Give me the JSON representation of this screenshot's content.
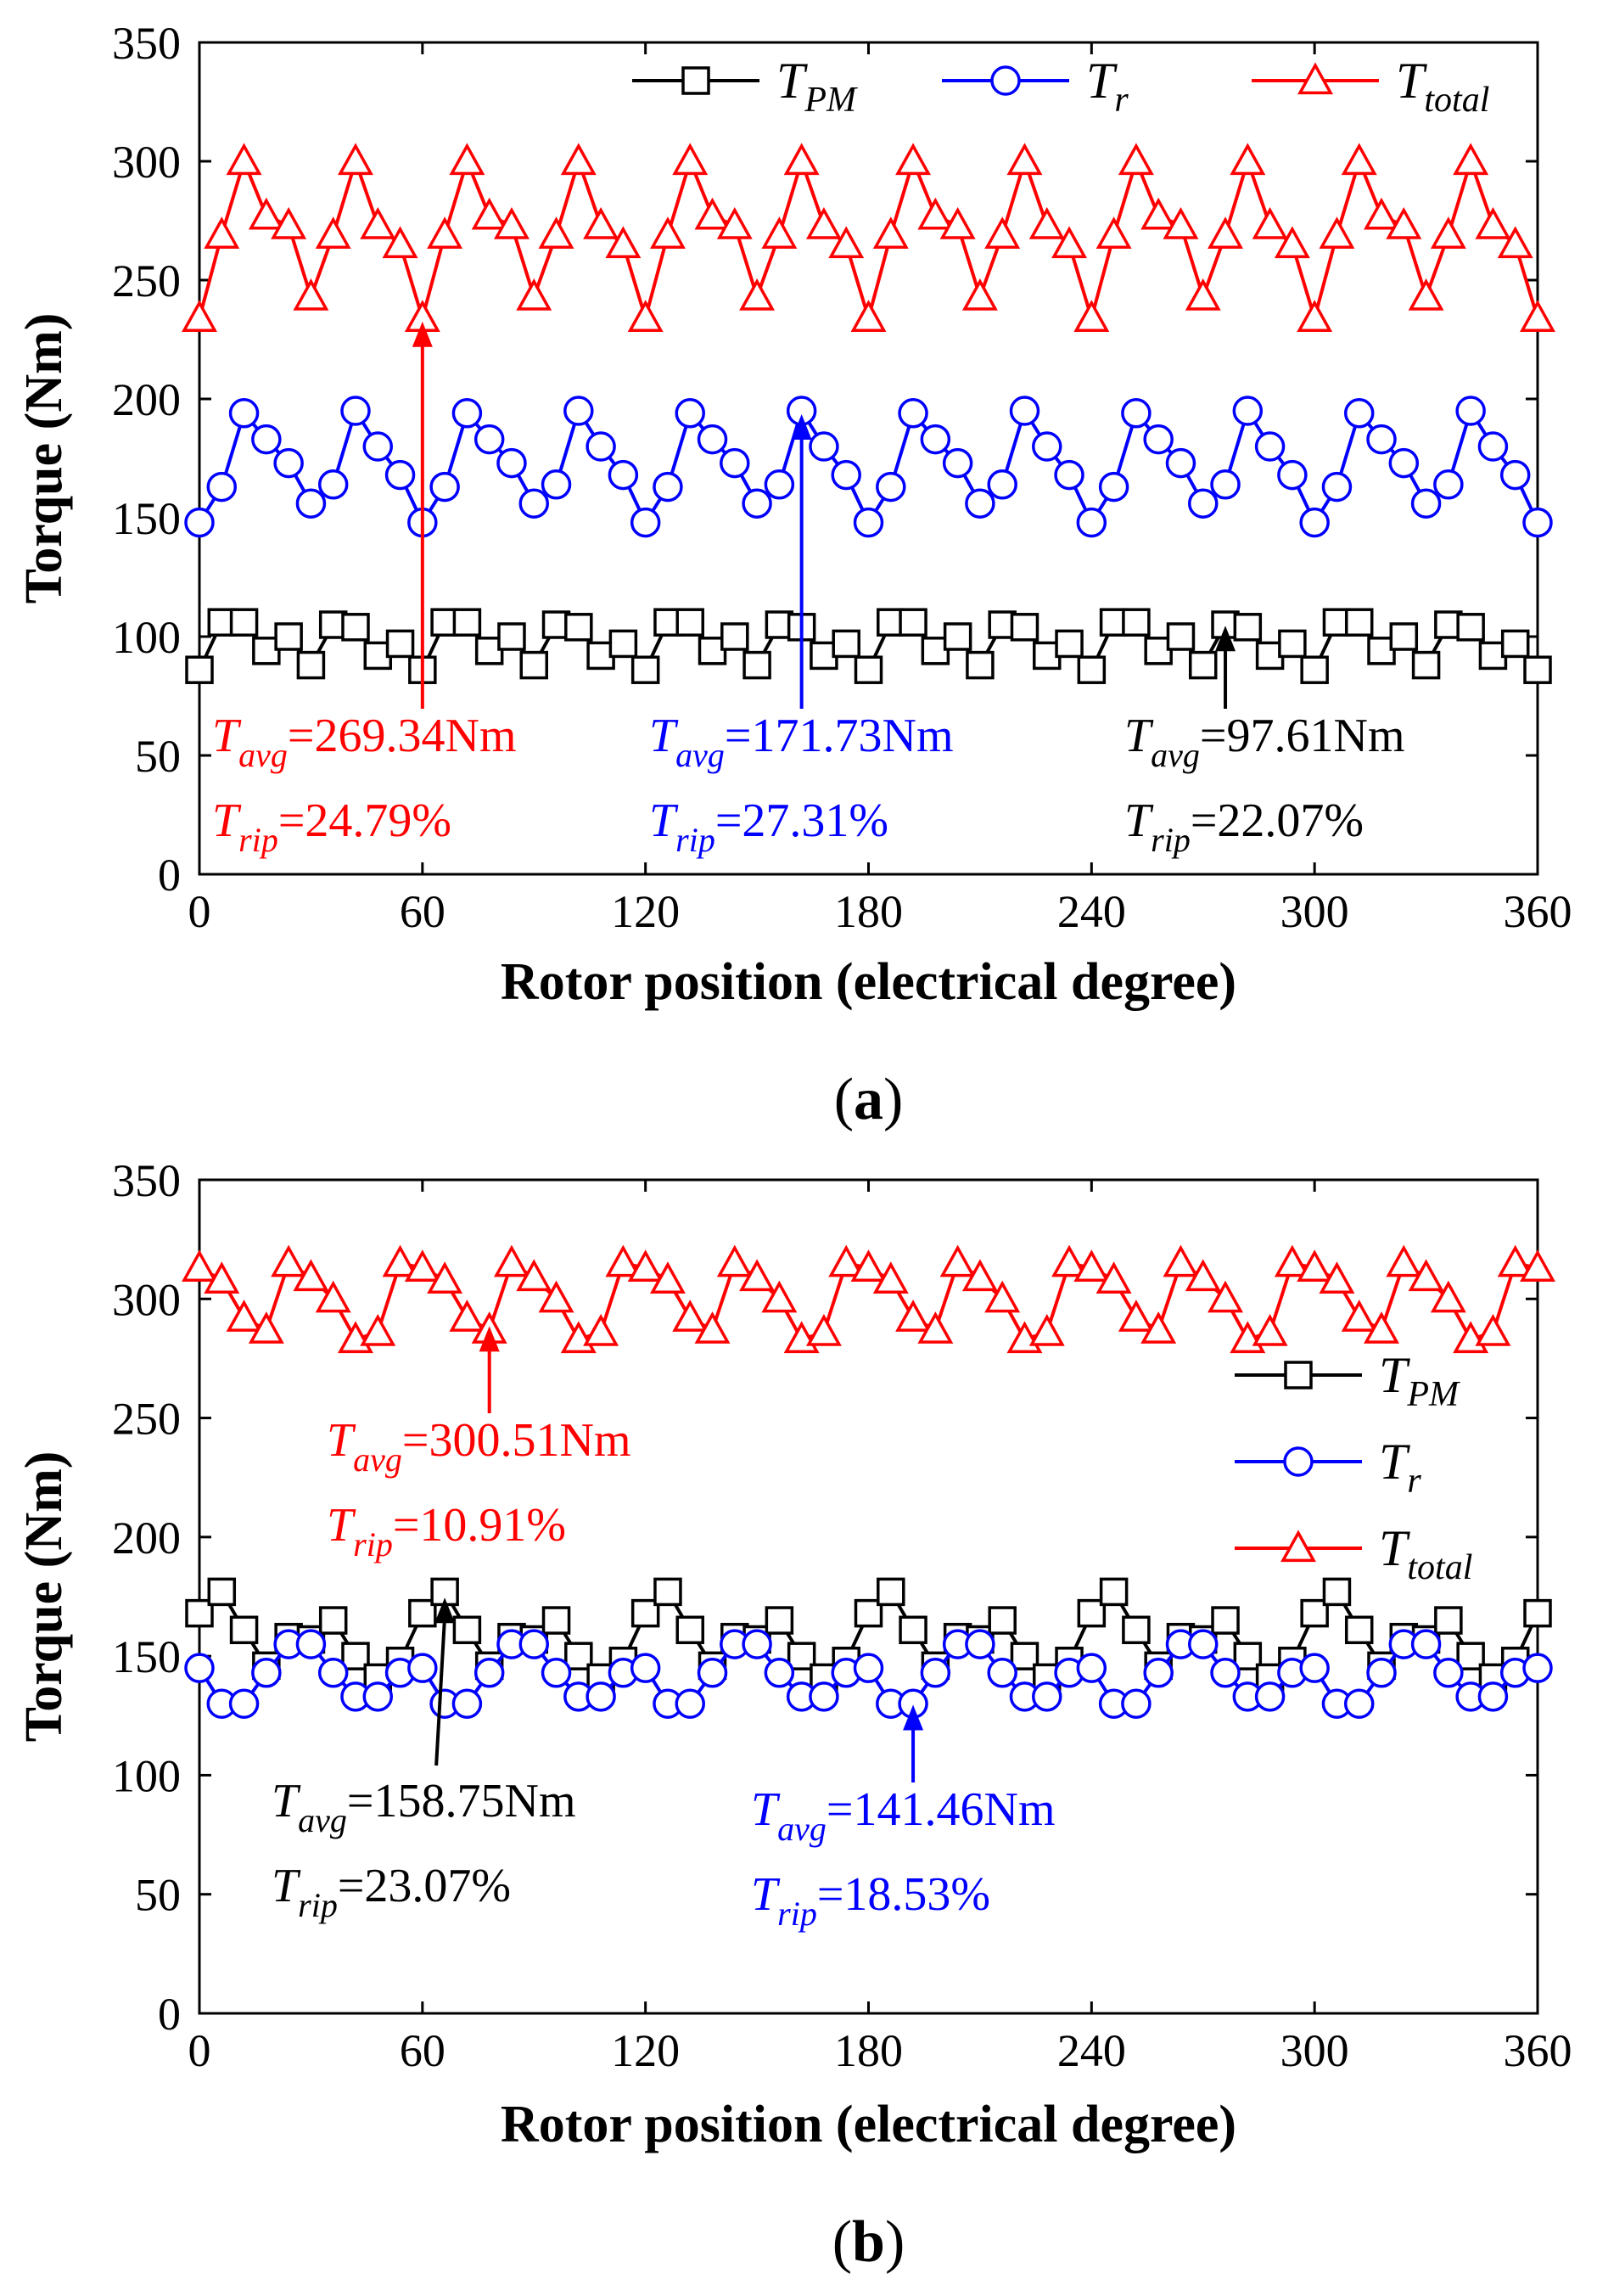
{
  "chart_data": [
    {
      "type": "line",
      "panel_label": "(a)",
      "panel_letter": "a",
      "xlabel": "Rotor position (electrical degree)",
      "ylabel": "Torque (Nm)",
      "xlim": [
        0,
        360
      ],
      "ylim": [
        0,
        350
      ],
      "xticks": [
        0,
        60,
        120,
        180,
        240,
        300,
        360
      ],
      "yticks": [
        0,
        50,
        100,
        150,
        200,
        250,
        300,
        350
      ],
      "legend_position": "top",
      "legend_layout": "horizontal",
      "series": [
        {
          "name": "T_PM",
          "label_main": "T",
          "label_sub": "PM",
          "color": "#000000",
          "marker": "square",
          "pattern": [
            86,
            106,
            106,
            94,
            100,
            88,
            105,
            104,
            92,
            97
          ],
          "x_step": 6,
          "period_points": 10
        },
        {
          "name": "T_r",
          "label_main": "T",
          "label_sub": "r",
          "color": "#0000ff",
          "marker": "circle",
          "pattern": [
            148,
            163,
            194,
            183,
            173,
            156,
            164,
            195,
            180,
            168
          ],
          "x_step": 6,
          "period_points": 10
        },
        {
          "name": "T_total",
          "label_main": "T",
          "label_sub": "total",
          "color": "#ff0000",
          "marker": "triangle",
          "pattern": [
            234,
            269,
            300,
            277,
            273,
            243,
            269,
            300,
            273,
            265
          ],
          "x_step": 6,
          "period_points": 10
        }
      ],
      "annotations": [
        {
          "color": "#ff0000",
          "avg_sub": "avg",
          "avg_text": "=269.34Nm",
          "rip_sub": "rip",
          "rip_text": "=24.79%",
          "arrow_to_x": 60,
          "arrow_to_y": 234
        },
        {
          "color": "#0000ff",
          "avg_sub": "avg",
          "avg_text": "=171.73Nm",
          "rip_sub": "rip",
          "rip_text": "=27.31%",
          "arrow_to_x": 162,
          "arrow_to_y": 195
        },
        {
          "color": "#000000",
          "avg_sub": "avg",
          "avg_text": "=97.61Nm",
          "rip_sub": "rip",
          "rip_text": "=22.07%",
          "arrow_to_x": 276,
          "arrow_to_y": 106
        }
      ]
    },
    {
      "type": "line",
      "panel_label": "(b)",
      "panel_letter": "b",
      "xlabel": "Rotor position (electrical degree)",
      "ylabel": "Torque (Nm)",
      "xlim": [
        0,
        360
      ],
      "ylim": [
        0,
        350
      ],
      "xticks": [
        0,
        60,
        120,
        180,
        240,
        300,
        360
      ],
      "yticks": [
        0,
        50,
        100,
        150,
        200,
        250,
        300,
        350
      ],
      "legend_position": "right",
      "legend_layout": "vertical",
      "series": [
        {
          "name": "T_PM",
          "label_main": "T",
          "label_sub": "PM",
          "color": "#000000",
          "marker": "square",
          "pattern": [
            168,
            177,
            161,
            146,
            158,
            157,
            165,
            150,
            141,
            148
          ],
          "x_step": 6,
          "period_points": 10
        },
        {
          "name": "T_r",
          "label_main": "T",
          "label_sub": "r",
          "color": "#0000ff",
          "marker": "circle",
          "pattern": [
            145,
            130,
            130,
            143,
            155,
            155,
            143,
            133,
            133,
            143
          ],
          "x_step": 6,
          "period_points": 10
        },
        {
          "name": "T_total",
          "label_main": "T",
          "label_sub": "total",
          "color": "#ff0000",
          "marker": "triangle",
          "pattern": [
            313,
            308,
            292,
            287,
            315,
            309,
            300,
            283,
            286,
            315
          ],
          "x_step": 6,
          "period_points": 10
        }
      ],
      "annotations": [
        {
          "color": "#ff0000",
          "avg_sub": "avg",
          "avg_text": "=300.51Nm",
          "rip_sub": "rip",
          "rip_text": "=10.91%",
          "arrow_to_x": 78,
          "arrow_to_y": 290
        },
        {
          "color": "#000000",
          "avg_sub": "avg",
          "avg_text": "=158.75Nm",
          "rip_sub": "rip",
          "rip_text": "=23.07%",
          "arrow_to_x": 66,
          "arrow_to_y": 176
        },
        {
          "color": "#0000ff",
          "avg_sub": "avg",
          "avg_text": "=141.46Nm",
          "rip_sub": "rip",
          "rip_text": "=18.53%",
          "arrow_to_x": 192,
          "arrow_to_y": 131
        }
      ]
    }
  ]
}
